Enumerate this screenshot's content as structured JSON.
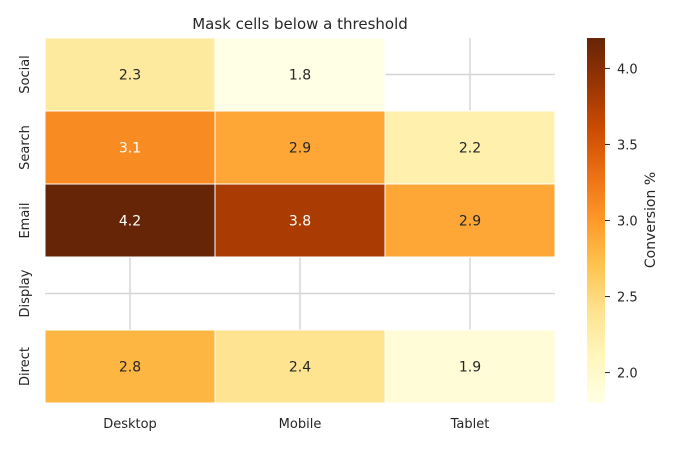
{
  "chart_data": {
    "type": "heatmap",
    "title": "Mask cells below a threshold",
    "x_categories": [
      "Desktop",
      "Mobile",
      "Tablet"
    ],
    "y_categories": [
      "Social",
      "Search",
      "Email",
      "Display",
      "Direct"
    ],
    "values": [
      [
        2.3,
        1.8,
        null
      ],
      [
        3.1,
        2.9,
        2.2
      ],
      [
        4.2,
        3.8,
        2.9
      ],
      [
        null,
        null,
        null
      ],
      [
        2.8,
        2.4,
        1.9
      ]
    ],
    "colorbar": {
      "label": "Conversion %",
      "range": [
        1.8,
        4.2
      ],
      "ticks": [
        "2.0",
        "2.5",
        "3.0",
        "3.5",
        "4.0"
      ],
      "colormap": "YlOrBr"
    },
    "masked_style": "blank background with grid lines"
  }
}
